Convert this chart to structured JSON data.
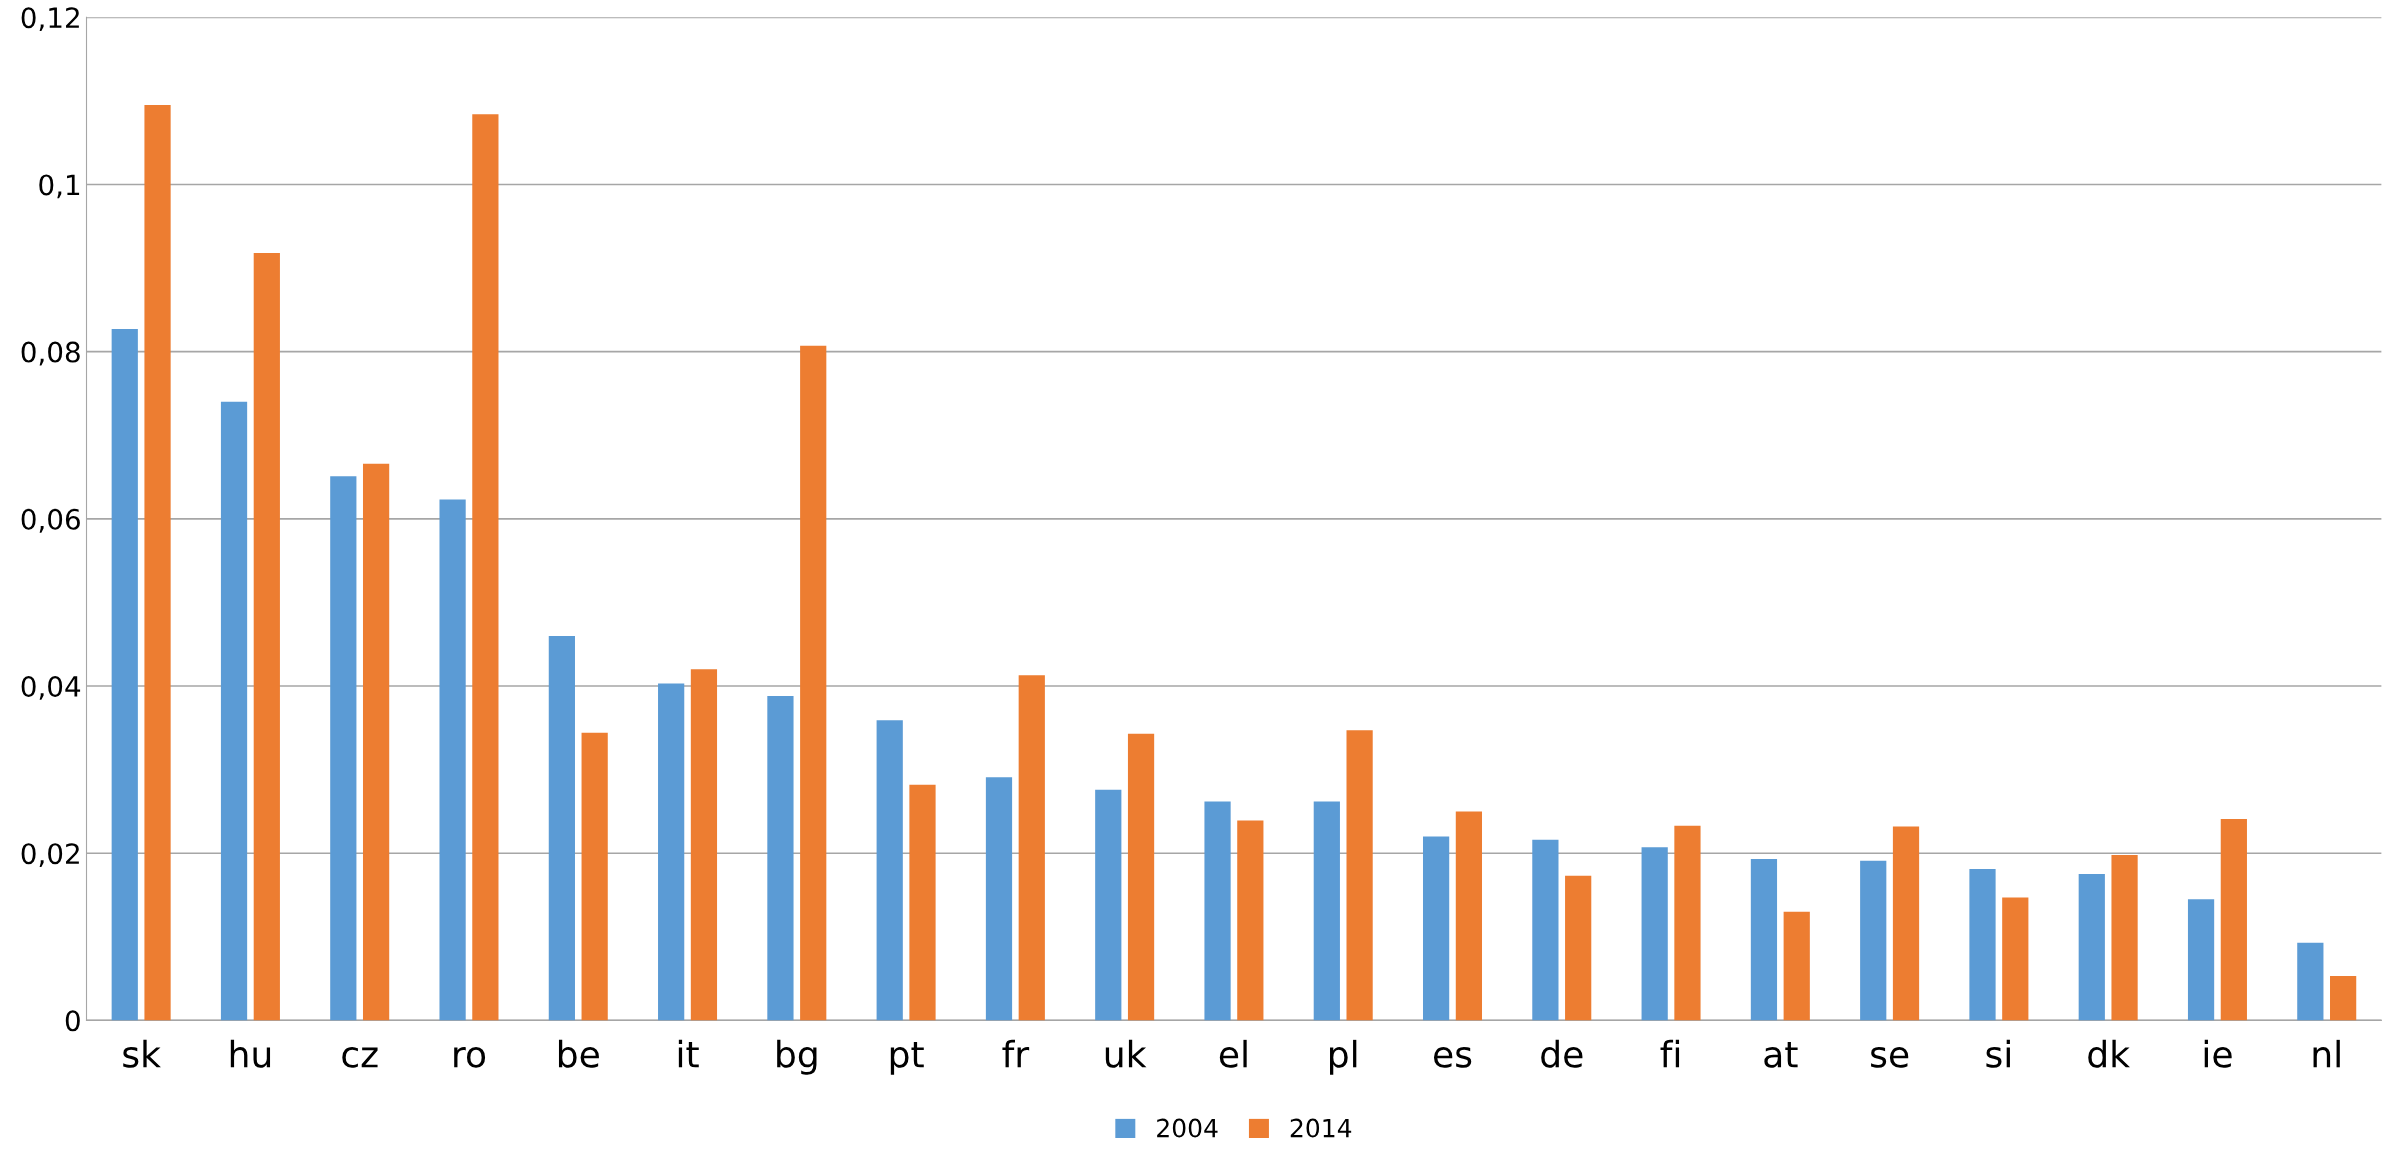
{
  "chart_data": {
    "type": "bar",
    "categories": [
      "sk",
      "hu",
      "cz",
      "ro",
      "be",
      "it",
      "bg",
      "pt",
      "fr",
      "uk",
      "el",
      "pl",
      "es",
      "de",
      "fi",
      "at",
      "se",
      "si",
      "dk",
      "ie",
      "nl"
    ],
    "series": [
      {
        "name": "2004",
        "color": "#5b9bd5",
        "values": [
          0.0827,
          0.074,
          0.0651,
          0.0623,
          0.046,
          0.0403,
          0.0388,
          0.0359,
          0.0291,
          0.0276,
          0.0262,
          0.0262,
          0.022,
          0.0216,
          0.0207,
          0.0193,
          0.0191,
          0.0181,
          0.0175,
          0.0145,
          0.0093
        ]
      },
      {
        "name": "2014",
        "color": "#ed7d31",
        "values": [
          0.1095,
          0.0918,
          0.0666,
          0.1084,
          0.0344,
          0.042,
          0.0807,
          0.0282,
          0.0413,
          0.0343,
          0.0239,
          0.0347,
          0.025,
          0.0173,
          0.0233,
          0.013,
          0.0232,
          0.0147,
          0.0198,
          0.0241,
          0.0053
        ]
      }
    ],
    "ylim": [
      0,
      0.12
    ],
    "yticks": [
      0,
      {
        "value": 0.02,
        "label": "0,02"
      },
      {
        "value": 0.04,
        "label": "0,04"
      },
      {
        "value": 0.06,
        "label": "0,06"
      },
      {
        "value": 0.08,
        "label": "0,08"
      },
      {
        "value": 0.1,
        "label": "0,1"
      },
      {
        "value": 0.12,
        "label": "0,12"
      }
    ],
    "grid": "y",
    "legend": "bottom"
  }
}
